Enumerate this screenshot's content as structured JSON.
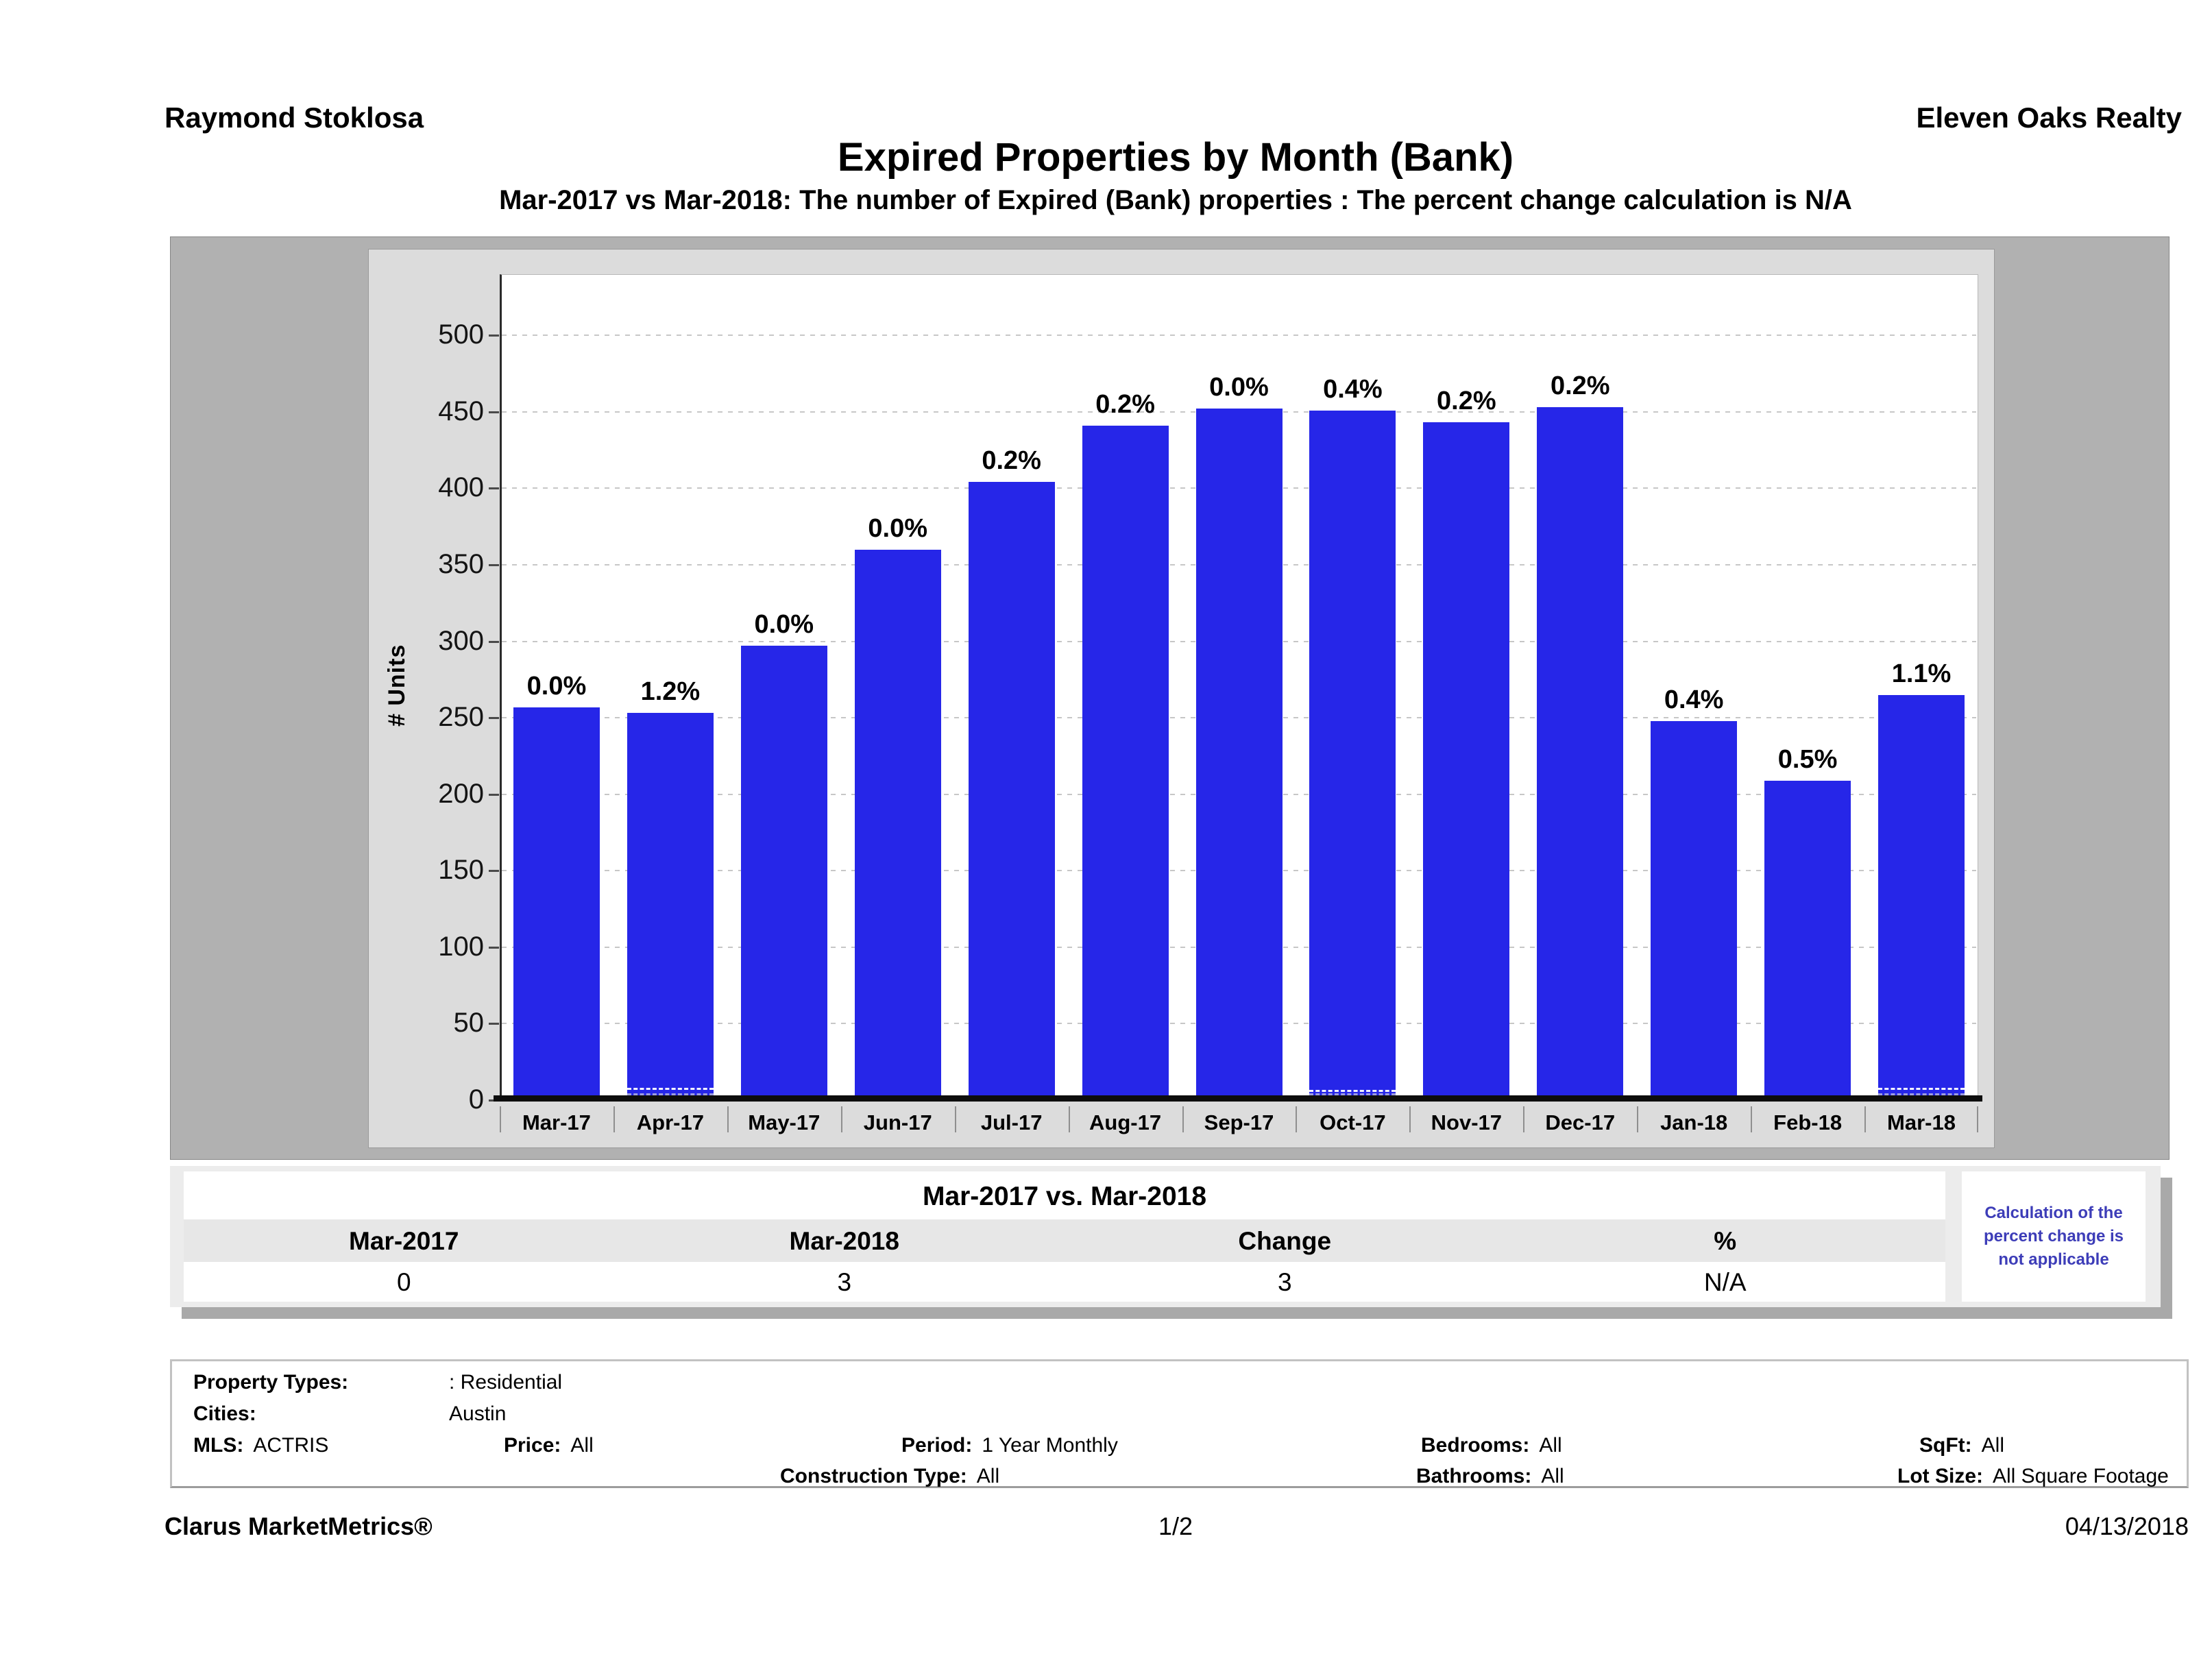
{
  "header": {
    "agent": "Raymond Stoklosa",
    "company": "Eleven Oaks Realty"
  },
  "title": "Expired Properties by Month (Bank)",
  "subtitle": "Mar-2017 vs Mar-2018: The number of Expired (Bank)  properties :  The percent change calculation is N/A",
  "chart_data": {
    "type": "bar",
    "title": "Expired Properties by Month (Bank)",
    "xlabel": "",
    "ylabel": "# Units",
    "ylim": [
      0,
      540
    ],
    "yticks": [
      0,
      50,
      100,
      150,
      200,
      250,
      300,
      350,
      400,
      450,
      500
    ],
    "grid": "dotted-horizontal",
    "legend": "none",
    "bar_color": "#2626e8",
    "categories": [
      "Mar-17",
      "Apr-17",
      "May-17",
      "Jun-17",
      "Jul-17",
      "Aug-17",
      "Sep-17",
      "Oct-17",
      "Nov-17",
      "Dec-17",
      "Jan-18",
      "Feb-18",
      "Mar-18"
    ],
    "values": [
      257,
      253,
      297,
      360,
      404,
      441,
      452,
      451,
      443,
      453,
      248,
      209,
      265
    ],
    "bar_labels": [
      "0.0%",
      "1.2%",
      "0.0%",
      "0.0%",
      "0.2%",
      "0.2%",
      "0.0%",
      "0.4%",
      "0.2%",
      "0.2%",
      "0.4%",
      "0.5%",
      "1.1%"
    ],
    "bank_overlay_units": [
      0,
      3,
      0,
      0,
      0,
      0,
      0,
      2,
      0,
      0,
      0,
      0,
      3
    ]
  },
  "comparison_table": {
    "title": "Mar-2017 vs. Mar-2018",
    "columns": [
      "Mar-2017",
      "Mar-2018",
      "Change",
      "%"
    ],
    "values": [
      "0",
      "3",
      "3",
      "N/A"
    ],
    "note": "Calculation of the percent change is not applicable",
    "note_color": "#3d3db8"
  },
  "criteria": {
    "property_types_label": "Property Types:",
    "property_types": ": Residential",
    "cities_label": "Cities:",
    "cities": "Austin",
    "mls_label": "MLS:",
    "mls": "ACTRIS",
    "price_label": "Price:",
    "price": "All",
    "period_label": "Period:",
    "period": "1 Year Monthly",
    "bedrooms_label": "Bedrooms:",
    "bedrooms": "All",
    "sqft_label": "SqFt:",
    "sqft": "All",
    "construction_label": "Construction Type:",
    "construction": "All",
    "bathrooms_label": "Bathrooms:",
    "bathrooms": "All",
    "lot_size_label": "Lot Size:",
    "lot_size": "All Square Footage"
  },
  "footer": {
    "brand": "Clarus MarketMetrics®",
    "page": "1/2",
    "date": "04/13/2018"
  }
}
